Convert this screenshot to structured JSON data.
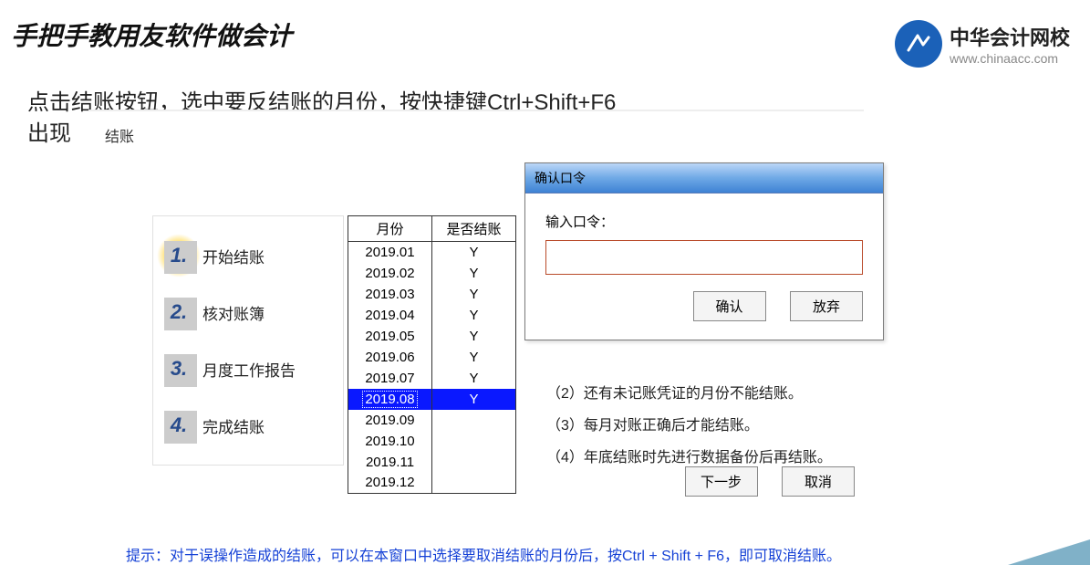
{
  "page_title": "手把手教用友软件做会计",
  "logo": {
    "cn": "中华会计网校",
    "url": "www.chinaacc.com",
    "color": "#1b61b8"
  },
  "instruction_line1": "点击结账按钮，选中要反结账的月份，按快捷键Ctrl+Shift+F6",
  "instruction_line2": "出现",
  "wizard": {
    "title": "结账",
    "steps": [
      {
        "num": "1.",
        "label": "开始结账",
        "active": true
      },
      {
        "num": "2.",
        "label": "核对账簿",
        "active": false
      },
      {
        "num": "3.",
        "label": "月度工作报告",
        "active": false
      },
      {
        "num": "4.",
        "label": "完成结账",
        "active": false
      }
    ],
    "table": {
      "columns": [
        "月份",
        "是否结账"
      ],
      "rows": [
        {
          "month": "2019.01",
          "closed": "Y",
          "selected": false
        },
        {
          "month": "2019.02",
          "closed": "Y",
          "selected": false
        },
        {
          "month": "2019.03",
          "closed": "Y",
          "selected": false
        },
        {
          "month": "2019.04",
          "closed": "Y",
          "selected": false
        },
        {
          "month": "2019.05",
          "closed": "Y",
          "selected": false
        },
        {
          "month": "2019.06",
          "closed": "Y",
          "selected": false
        },
        {
          "month": "2019.07",
          "closed": "Y",
          "selected": false
        },
        {
          "month": "2019.08",
          "closed": "Y",
          "selected": true
        },
        {
          "month": "2019.09",
          "closed": "",
          "selected": false
        },
        {
          "month": "2019.10",
          "closed": "",
          "selected": false
        },
        {
          "month": "2019.11",
          "closed": "",
          "selected": false
        },
        {
          "month": "2019.12",
          "closed": "",
          "selected": false
        }
      ]
    },
    "notes": [
      "（2）还有未记账凭证的月份不能结账。",
      "（3）每月对账正确后才能结账。",
      "（4）年底结账时先进行数据备份后再结账。"
    ],
    "next_button": "下一步",
    "cancel_button": "取消"
  },
  "dialog": {
    "title": "确认口令",
    "label": "输入口令：",
    "value": "",
    "ok": "确认",
    "cancel": "放弃",
    "input_border": "#b94a2a"
  },
  "hint": "提示：对于误操作造成的结账，可以在本窗口中选择要取消结账的月份后，按Ctrl + Shift + F6，即可取消结账。"
}
